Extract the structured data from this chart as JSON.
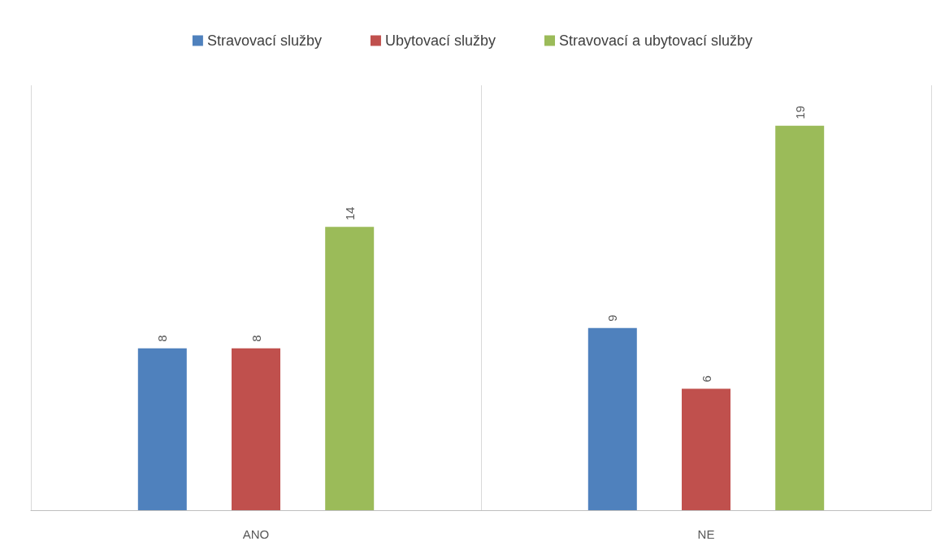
{
  "chart_data": {
    "type": "bar",
    "categories": [
      "ANO",
      "NE"
    ],
    "series": [
      {
        "name": "Stravovací služby",
        "color": "#4f81bd",
        "values": [
          8,
          9
        ]
      },
      {
        "name": "Ubytovací služby",
        "color": "#c0504d",
        "values": [
          8,
          6
        ]
      },
      {
        "name": "Stravovací a ubytovací služby",
        "color": "#9bbb59",
        "values": [
          14,
          19
        ]
      }
    ],
    "tick_labels": "x",
    "data_labels": true,
    "legend": "top",
    "grid": "x"
  }
}
